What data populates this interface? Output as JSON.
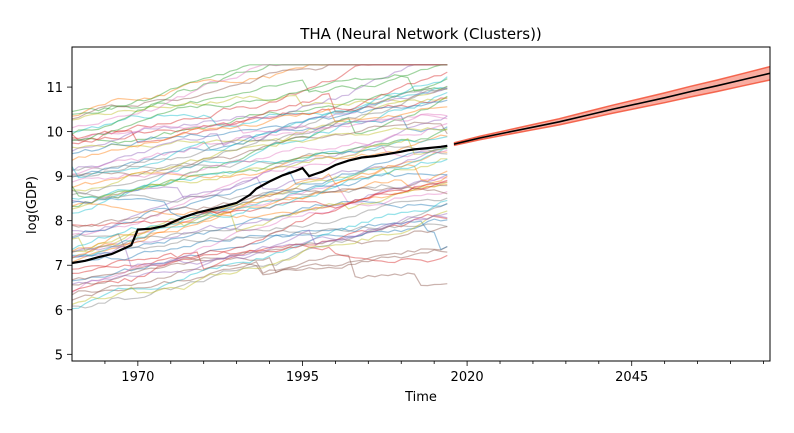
{
  "chart_data": {
    "type": "line",
    "title": "THA (Neural Network (Clusters))",
    "xlabel": "Time",
    "ylabel": "log(GDP)",
    "xlim": [
      1960,
      2066
    ],
    "ylim": [
      4.85,
      11.9
    ],
    "x_ticks": [
      1970,
      1995,
      2020,
      2045
    ],
    "y_ticks": [
      5,
      6,
      7,
      8,
      9,
      10,
      11
    ],
    "grid": false,
    "legend": "none",
    "background_series": {
      "description_count": 70,
      "x_range": [
        1960,
        2017
      ],
      "y_range": [
        5.3,
        11.5
      ],
      "alpha": 0.45,
      "colors": [
        "#1f77b4",
        "#ff7f0e",
        "#2ca02c",
        "#d62728",
        "#9467bd",
        "#8c564b",
        "#e377c2",
        "#7f7f7f",
        "#bcbd22",
        "#17becf"
      ]
    },
    "series": [
      {
        "role": "history",
        "color": "#000000",
        "x": [
          1960,
          1962,
          1964,
          1966,
          1968,
          1969,
          1970,
          1972,
          1974,
          1975,
          1977,
          1979,
          1981,
          1983,
          1985,
          1987,
          1988,
          1990,
          1992,
          1994,
          1995,
          1996,
          1997,
          1998,
          2000,
          2002,
          2004,
          2006,
          2008,
          2010,
          2011,
          2012,
          2014,
          2016,
          2017
        ],
        "values": [
          7.05,
          7.1,
          7.18,
          7.25,
          7.38,
          7.45,
          7.8,
          7.82,
          7.88,
          7.95,
          8.08,
          8.18,
          8.25,
          8.32,
          8.4,
          8.58,
          8.72,
          8.88,
          9.02,
          9.12,
          9.18,
          9.0,
          9.05,
          9.1,
          9.25,
          9.35,
          9.42,
          9.45,
          9.5,
          9.55,
          9.58,
          9.6,
          9.63,
          9.66,
          9.68
        ]
      },
      {
        "role": "forecast",
        "color": "#000000",
        "band_color": "#f24a2e",
        "x": [
          2018,
          2022,
          2026,
          2030,
          2034,
          2038,
          2042,
          2046,
          2050,
          2054,
          2058,
          2062,
          2066
        ],
        "values": [
          9.72,
          9.86,
          9.98,
          10.1,
          10.22,
          10.36,
          10.5,
          10.63,
          10.76,
          10.9,
          11.03,
          11.17,
          11.31
        ],
        "band_width": [
          0.03,
          0.04,
          0.05,
          0.06,
          0.07,
          0.08,
          0.09,
          0.1,
          0.11,
          0.12,
          0.13,
          0.14,
          0.15
        ]
      }
    ]
  }
}
